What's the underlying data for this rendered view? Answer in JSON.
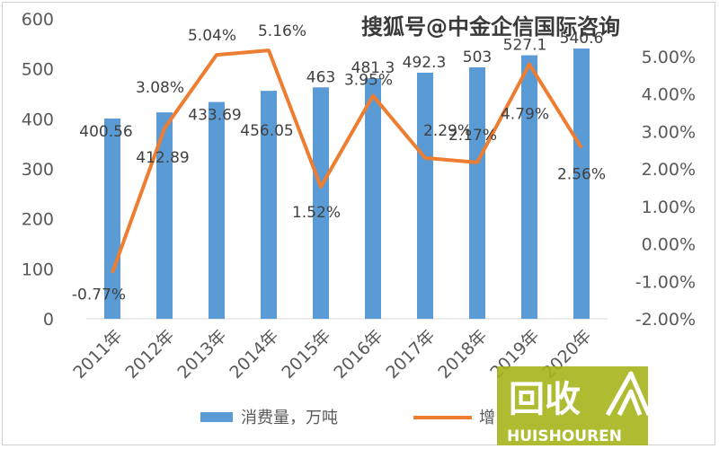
{
  "chart_data": {
    "type": "bar",
    "categories": [
      "2011年",
      "2012年",
      "2013年",
      "2014年",
      "2015年",
      "2016年",
      "2017年",
      "2018年",
      "2019年",
      "2020年"
    ],
    "series": [
      {
        "name": "消费量，万吨",
        "kind": "bar",
        "axis": "left",
        "values": [
          400.56,
          412.89,
          433.69,
          456.05,
          463,
          481.3,
          492.3,
          503,
          527.1,
          540.6
        ],
        "labels": [
          "400.56",
          "412.89",
          "433.69",
          "456.05",
          "463",
          "481.3",
          "492.3",
          "503",
          "527.1",
          "540.6"
        ],
        "color": "#5B9BD5"
      },
      {
        "name": "增",
        "kind": "line",
        "axis": "right",
        "values": [
          -0.77,
          3.08,
          5.04,
          5.16,
          1.52,
          3.95,
          2.29,
          2.17,
          4.79,
          2.56
        ],
        "labels": [
          "-0.77%",
          "3.08%",
          "5.04%",
          "5.16%",
          "1.52%",
          "3.95%",
          "2.29%",
          "2.17%",
          "4.79%",
          "2.56%"
        ],
        "color": "#ED7D31"
      }
    ],
    "y_left": {
      "ylim": [
        0,
        600
      ],
      "ticks": [
        "0",
        "100",
        "200",
        "300",
        "400",
        "500",
        "600"
      ]
    },
    "y_right": {
      "ylim": [
        -2,
        6
      ],
      "ticks": [
        "-2.00%",
        "-1.00%",
        "0.00%",
        "1.00%",
        "2.00%",
        "3.00%",
        "4.00%",
        "5.00%"
      ]
    },
    "grid": false,
    "legend_position": "bottom"
  },
  "watermark": {
    "text": "搜狐号@中金企信国际咨询"
  },
  "logo": {
    "main": "回收",
    "sub": "HUISHOUREN",
    "color": "#a6b51c"
  }
}
